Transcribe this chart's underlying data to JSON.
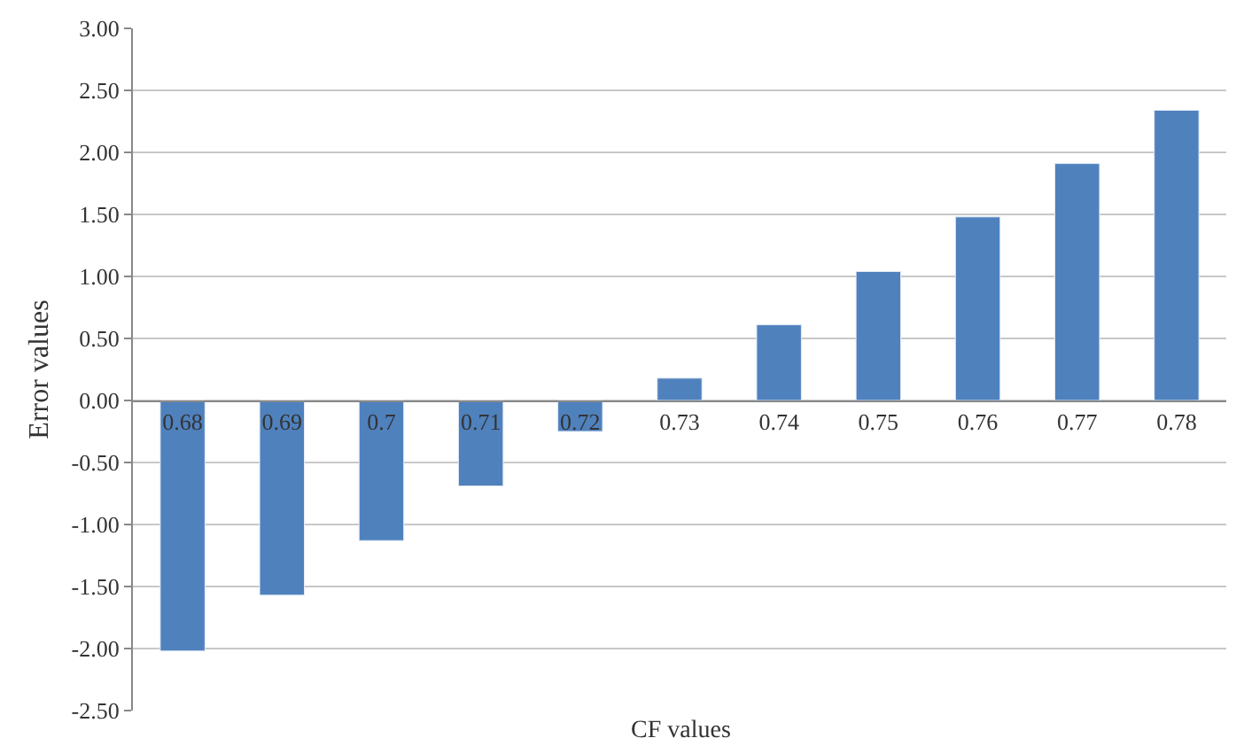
{
  "chart_data": {
    "type": "bar",
    "xlabel": "CF values",
    "ylabel": "Error values",
    "categories": [
      "0.68",
      "0.69",
      "0.7",
      "0.71",
      "0.72",
      "0.73",
      "0.74",
      "0.75",
      "0.76",
      "0.77",
      "0.78"
    ],
    "values": [
      -2.02,
      -1.57,
      -1.13,
      -0.69,
      -0.25,
      0.18,
      0.61,
      1.04,
      1.48,
      1.91,
      2.34
    ],
    "color": "#4f81bd",
    "ylim": [
      -2.5,
      3.0
    ],
    "yticks": [
      {
        "value": -2.5,
        "label": "-2.50"
      },
      {
        "value": -2.0,
        "label": "-2.00"
      },
      {
        "value": -1.5,
        "label": "-1.50"
      },
      {
        "value": -1.0,
        "label": "-1.00"
      },
      {
        "value": -0.5,
        "label": "-0.50"
      },
      {
        "value": 0,
        "label": "0.00"
      },
      {
        "value": 0.5,
        "label": "0.50"
      },
      {
        "value": 1.0,
        "label": "1.00"
      },
      {
        "value": 1.5,
        "label": "1.50"
      },
      {
        "value": 2.0,
        "label": "2.00"
      },
      {
        "value": 2.5,
        "label": "2.50"
      },
      {
        "value": 3.0,
        "label": "3.00"
      }
    ],
    "grid": "y"
  }
}
